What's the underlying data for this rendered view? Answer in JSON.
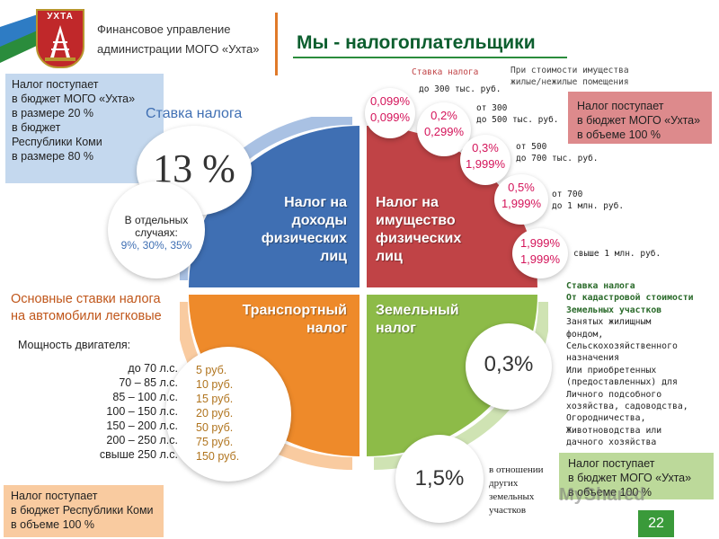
{
  "header": {
    "org_line1": "Финансовое управление",
    "org_line2": "администрации МОГО «Ухта»",
    "logo_text": "УХТА",
    "title": "Мы - налогоплательщики"
  },
  "colors": {
    "blue": "#3f6fb3",
    "red": "#c04346",
    "orange": "#ee8a2a",
    "green": "#8dbb48"
  },
  "income_tax": {
    "info_box": [
      "Налог поступает",
      "в бюджет МОГО «Ухта»",
      "в размере 20 %",
      "в бюджет",
      "Республики Коми",
      "в размере 80 %"
    ],
    "rate_caption": "Ставка налога",
    "rate": "13 %",
    "special_line1": "В отдельных",
    "special_line2": "случаях:",
    "special_rates": "9%, 30%, 35%",
    "label": [
      "Налог на",
      "доходы",
      "физических",
      "лиц"
    ]
  },
  "property_tax": {
    "label": [
      "Налог на",
      "имущество",
      "физических",
      "лиц"
    ],
    "rate_header": "Ставка налога",
    "value_header_line1": "При стоимости имущества",
    "value_header_line2": "жилые/нежилые помещения",
    "info_box": [
      "Налог поступает",
      "в бюджет МОГО «Ухта»",
      "в объеме 100 %"
    ],
    "rates": [
      {
        "r1": "0,099%",
        "r2": "0,099%",
        "t1": "до 300 тыс. руб.",
        "t2": ""
      },
      {
        "r1": "0,2%",
        "r2": "0,299%",
        "t1": "от 300",
        "t2": "до 500 тыс. руб."
      },
      {
        "r1": "0,3%",
        "r2": "1,999%",
        "t1": "от 500",
        "t2": "до 700 тыс. руб."
      },
      {
        "r1": "0,5%",
        "r2": "1,999%",
        "t1": "от 700",
        "t2": "до 1 млн. руб."
      },
      {
        "r1": "1,999%",
        "r2": "1,999%",
        "t1": "свыше 1 млн. руб.",
        "t2": ""
      }
    ]
  },
  "transport_tax": {
    "label": [
      "Транспортный",
      "налог"
    ],
    "heading_line1": "Основные ставки налога",
    "heading_line2": "на автомобили легковые",
    "power_caption": "Мощность двигателя:",
    "powers": [
      "до 70 л.с.",
      "70 – 85 л.с.",
      "85 – 100 л.с.",
      "100 – 150 л.с.",
      "150 – 200 л.с.",
      "200 – 250 л.с.",
      "свыше 250 л.с."
    ],
    "rates": [
      "5 руб.",
      "10 руб.",
      "15 руб.",
      "20 руб.",
      "50 руб.",
      "75 руб.",
      "150 руб."
    ],
    "info_box": [
      "Налог поступает",
      "в бюджет Республики Коми",
      "в объеме 100 %"
    ]
  },
  "land_tax": {
    "label": [
      "Земельный",
      "налог"
    ],
    "rate_main": "0,3%",
    "rate_other": "1,5%",
    "desc": [
      "Ставка налога",
      "От кадастровой стоимости",
      "Земельных участков",
      "Занятых жилищным",
      "фондом,",
      "Сельскохозяйственного",
      "назначения",
      "Или приобретенных",
      "(предоставленных) для",
      "Личного подсобного",
      "хозяйства, садоводства,",
      "Огородничества,",
      "Животноводства или",
      "дачного хозяйства"
    ],
    "other_desc": [
      "в отношении",
      "других",
      "земельных",
      "участков"
    ],
    "info_box": [
      "Налог поступает",
      "в бюджет МОГО «Ухта»",
      "в объеме 100 %"
    ]
  },
  "page_number": "22",
  "watermark": "MyShared"
}
